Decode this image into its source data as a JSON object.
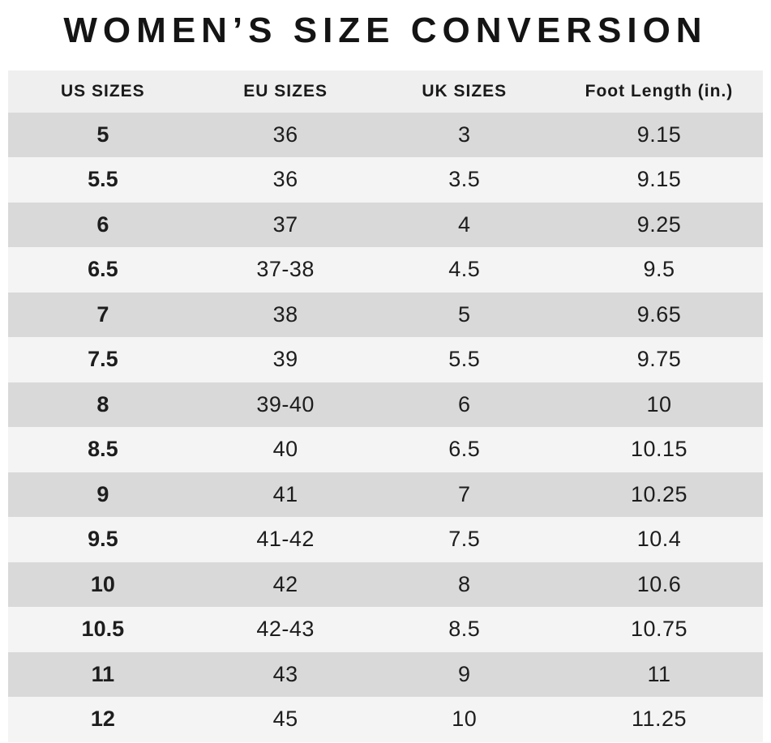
{
  "title": "WOMEN’S SIZE CONVERSION",
  "chart_data": {
    "type": "table",
    "title": "WOMEN’S SIZE CONVERSION",
    "columns": [
      "US SIZES",
      "EU SIZES",
      "UK SIZES",
      "Foot Length (in.)"
    ],
    "rows": [
      [
        "5",
        "36",
        "3",
        "9.15"
      ],
      [
        "5.5",
        "36",
        "3.5",
        "9.15"
      ],
      [
        "6",
        "37",
        "4",
        "9.25"
      ],
      [
        "6.5",
        "37-38",
        "4.5",
        "9.5"
      ],
      [
        "7",
        "38",
        "5",
        "9.65"
      ],
      [
        "7.5",
        "39",
        "5.5",
        "9.75"
      ],
      [
        "8",
        "39-40",
        "6",
        "10"
      ],
      [
        "8.5",
        "40",
        "6.5",
        "10.15"
      ],
      [
        "9",
        "41",
        "7",
        "10.25"
      ],
      [
        "9.5",
        "41-42",
        "7.5",
        "10.4"
      ],
      [
        "10",
        "42",
        "8",
        "10.6"
      ],
      [
        "10.5",
        "42-43",
        "8.5",
        "10.75"
      ],
      [
        "11",
        "43",
        "9",
        "11"
      ],
      [
        "12",
        "45",
        "10",
        "11.25"
      ]
    ]
  },
  "colors": {
    "header_bg": "#f0efef",
    "row_dark": "#d9d9d9",
    "row_light": "#f4f4f4",
    "text": "#1d1d1d",
    "background": "#ffffff"
  }
}
